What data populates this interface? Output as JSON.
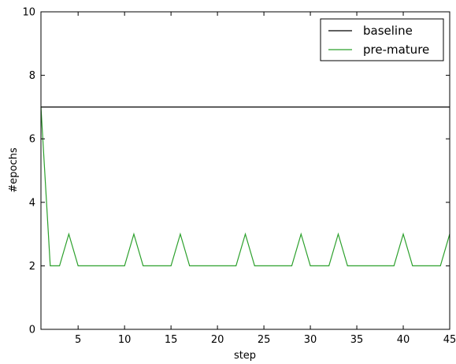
{
  "chart_data": {
    "type": "line",
    "title": "",
    "xlabel": "step",
    "ylabel": "#epochs",
    "xlim": [
      1,
      45
    ],
    "ylim": [
      0,
      10
    ],
    "xticks": [
      5,
      10,
      15,
      20,
      25,
      30,
      35,
      40,
      45
    ],
    "yticks": [
      0,
      2,
      4,
      6,
      8,
      10
    ],
    "grid": false,
    "legend": "top-right",
    "series": [
      {
        "name": "baseline",
        "color": "#000000",
        "x": [
          1,
          45
        ],
        "y": [
          7,
          7
        ]
      },
      {
        "name": "pre-mature",
        "color": "#2ca02c",
        "x": [
          1,
          2,
          3,
          4,
          5,
          6,
          7,
          8,
          9,
          10,
          11,
          12,
          13,
          14,
          15,
          16,
          17,
          18,
          19,
          20,
          21,
          22,
          23,
          24,
          25,
          26,
          27,
          28,
          29,
          30,
          31,
          32,
          33,
          34,
          35,
          36,
          37,
          38,
          39,
          40,
          41,
          42,
          43,
          44,
          45
        ],
        "y": [
          7,
          2,
          2,
          3,
          2,
          2,
          2,
          2,
          2,
          2,
          3,
          2,
          2,
          2,
          2,
          3,
          2,
          2,
          2,
          2,
          2,
          2,
          3,
          2,
          2,
          2,
          2,
          2,
          3,
          2,
          2,
          2,
          3,
          2,
          2,
          2,
          2,
          2,
          2,
          3,
          2,
          2,
          2,
          2,
          3
        ]
      }
    ]
  }
}
